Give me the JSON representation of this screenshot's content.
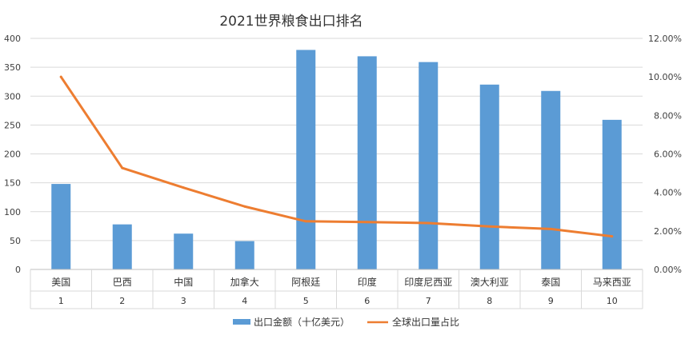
{
  "chart_data": {
    "type": "bar+line",
    "title": "2021世界粮食出口排名",
    "categories": [
      "美国",
      "巴西",
      "中国",
      "加拿大",
      "阿根廷",
      "印度",
      "印度尼西亚",
      "澳大利亚",
      "泰国",
      "马来西亚"
    ],
    "category_index": [
      "1",
      "2",
      "3",
      "4",
      "5",
      "6",
      "7",
      "8",
      "9",
      "10"
    ],
    "series": [
      {
        "name": "出口金额（十亿美元）",
        "type": "bar",
        "axis": "left",
        "color": "#5B9BD5",
        "values": [
          148,
          78,
          62,
          49,
          380,
          369,
          359,
          320,
          309,
          259
        ]
      },
      {
        "name": "全球出口量占比",
        "type": "line",
        "axis": "right",
        "color": "#ED7D31",
        "values": [
          0.1,
          0.0527,
          0.0425,
          0.0327,
          0.025,
          0.0246,
          0.0241,
          0.0223,
          0.021,
          0.0172
        ]
      }
    ],
    "ylim_left": [
      0,
      400
    ],
    "yticks_left": [
      "0",
      "50",
      "100",
      "150",
      "200",
      "250",
      "300",
      "350",
      "400"
    ],
    "ylim_right": [
      0,
      0.12
    ],
    "yticks_right": [
      "0.00%",
      "2.00%",
      "4.00%",
      "6.00%",
      "8.00%",
      "10.00%",
      "12.00%"
    ],
    "grid": true,
    "legend_position": "bottom"
  }
}
